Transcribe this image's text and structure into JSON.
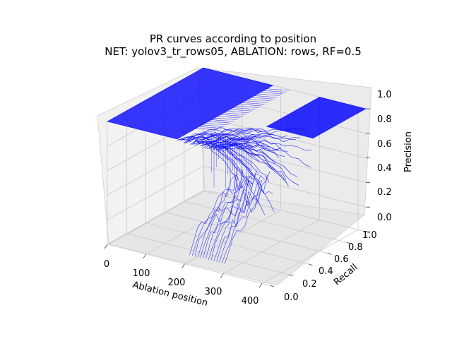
{
  "chart_data": {
    "type": "surface",
    "title": "PR curves according to position",
    "subtitle": "NET: yolov3_tr_rows05, ABLATION: rows, RF=0.5",
    "xlabel": "Ablation position",
    "ylabel": "Recall",
    "zlabel": "Precision",
    "xlim": [
      0,
      420
    ],
    "ylim": [
      0.0,
      1.0
    ],
    "zlim": [
      0.0,
      1.0
    ],
    "x_ticks": [
      "0",
      "100",
      "200",
      "300",
      "400"
    ],
    "y_ticks": [
      "0.0",
      "0.2",
      "0.4",
      "0.6",
      "0.8",
      "1.0"
    ],
    "z_ticks": [
      "0.0",
      "0.2",
      "0.4",
      "0.6",
      "0.8",
      "1.0"
    ],
    "grid": true,
    "series_color": "#0000ff",
    "description_of_data": [
      {
        "ablation_position_range": [
          0,
          180
        ],
        "precision": 1.0,
        "recall_range": [
          0.0,
          1.0
        ]
      },
      {
        "ablation_position_range": [
          180,
          300
        ],
        "precision_range": [
          0.0,
          1.0
        ],
        "recall_range": [
          0.0,
          1.0
        ]
      },
      {
        "ablation_position_range": [
          300,
          420
        ],
        "precision": 1.0,
        "recall_range": [
          0.0,
          1.0
        ]
      }
    ]
  }
}
